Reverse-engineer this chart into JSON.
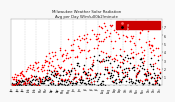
{
  "title": "Milwaukee Weather Solar Radiation",
  "subtitle": "Avg per Day W/m\\u00b2/minute",
  "background_color": "#f8f8f8",
  "plot_bg_color": "#ffffff",
  "grid_color": "#bbbbbb",
  "y_min": 0,
  "y_max": 8,
  "y_ticks": [
    1,
    2,
    3,
    4,
    5,
    6,
    7
  ],
  "legend_color1": "#ff0000",
  "legend_color2": "#000000",
  "point_size": 1.2,
  "seed": 7
}
